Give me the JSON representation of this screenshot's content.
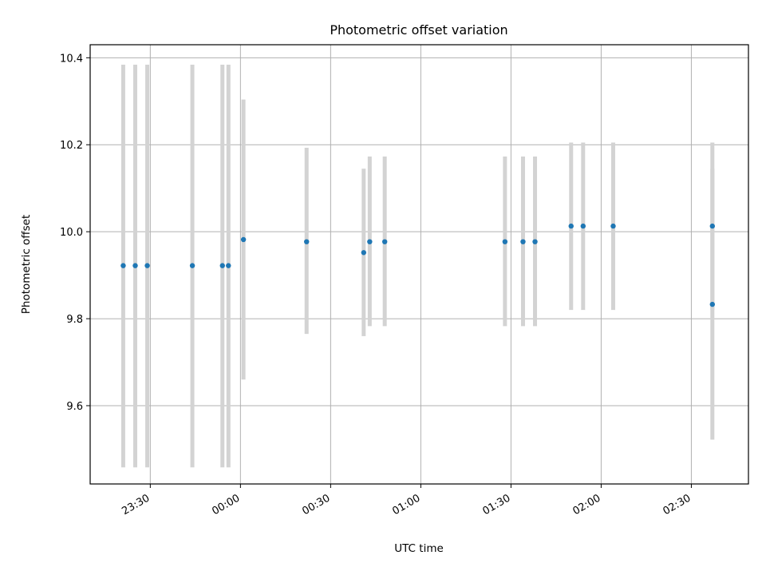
{
  "chart_data": {
    "type": "scatter",
    "title": "Photometric offset variation",
    "xlabel": "UTC time",
    "ylabel": "Photometric offset",
    "xlim": [
      "23:10",
      "02:49"
    ],
    "ylim": [
      9.42,
      10.43
    ],
    "x_ticks": [
      "23:30",
      "00:00",
      "00:30",
      "01:00",
      "01:30",
      "02:00",
      "02:30"
    ],
    "y_ticks": [
      9.6,
      9.8,
      10.0,
      10.2,
      10.4
    ],
    "grid": true,
    "x_tick_rotation": "30 degrees",
    "point_color": "#1f77b4",
    "errorbar_color": "#d3d3d3",
    "points": [
      {
        "x": "23:21",
        "y": 9.922,
        "ylow": 9.458,
        "yhigh": 10.384
      },
      {
        "x": "23:25",
        "y": 9.922,
        "ylow": 9.458,
        "yhigh": 10.384
      },
      {
        "x": "23:29",
        "y": 9.922,
        "ylow": 9.458,
        "yhigh": 10.384
      },
      {
        "x": "23:44",
        "y": 9.922,
        "ylow": 9.458,
        "yhigh": 10.384
      },
      {
        "x": "23:54",
        "y": 9.922,
        "ylow": 9.458,
        "yhigh": 10.384
      },
      {
        "x": "23:56",
        "y": 9.922,
        "ylow": 9.458,
        "yhigh": 10.384
      },
      {
        "x": "00:01",
        "y": 9.982,
        "ylow": 9.66,
        "yhigh": 10.304
      },
      {
        "x": "00:22",
        "y": 9.977,
        "ylow": 9.765,
        "yhigh": 10.193
      },
      {
        "x": "00:41",
        "y": 9.952,
        "ylow": 9.76,
        "yhigh": 10.145
      },
      {
        "x": "00:43",
        "y": 9.977,
        "ylow": 9.783,
        "yhigh": 10.173
      },
      {
        "x": "00:48",
        "y": 9.977,
        "ylow": 9.783,
        "yhigh": 10.173
      },
      {
        "x": "01:28",
        "y": 9.977,
        "ylow": 9.783,
        "yhigh": 10.173
      },
      {
        "x": "01:34",
        "y": 9.977,
        "ylow": 9.783,
        "yhigh": 10.173
      },
      {
        "x": "01:38",
        "y": 9.977,
        "ylow": 9.783,
        "yhigh": 10.173
      },
      {
        "x": "01:50",
        "y": 10.013,
        "ylow": 9.82,
        "yhigh": 10.205
      },
      {
        "x": "01:54",
        "y": 10.013,
        "ylow": 9.82,
        "yhigh": 10.205
      },
      {
        "x": "02:04",
        "y": 10.013,
        "ylow": 9.82,
        "yhigh": 10.205
      },
      {
        "x": "02:37",
        "y": 10.013,
        "ylow": 9.82,
        "yhigh": 10.205
      },
      {
        "x": "02:37",
        "y": 9.833,
        "ylow": 9.522,
        "yhigh": 10.145
      }
    ]
  }
}
